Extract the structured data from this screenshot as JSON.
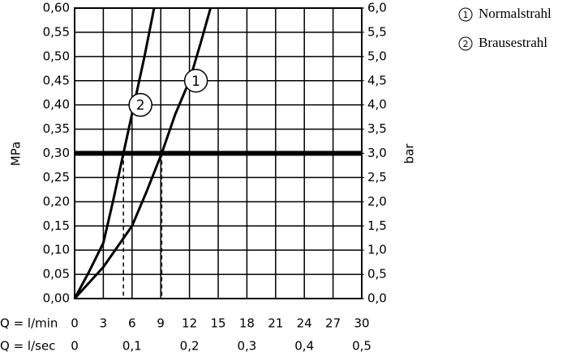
{
  "chart_data": {
    "type": "line",
    "xlabel": "Q = l/min",
    "ylabel": "MPa",
    "y2label": "bar",
    "x2label": "Q = l/sec",
    "xlim": [
      0,
      30
    ],
    "xticks": [
      0,
      3,
      6,
      9,
      12,
      15,
      18,
      21,
      24,
      27,
      30
    ],
    "x2lim": [
      0,
      0.5
    ],
    "x2ticks": [
      0,
      {
        "value": 0.1,
        "label": "0,1"
      },
      {
        "value": 0.2,
        "label": "0,2"
      },
      {
        "value": 0.3,
        "label": "0,3"
      },
      {
        "value": 0.4,
        "label": "0,4"
      },
      {
        "value": 0.5,
        "label": "0,5"
      }
    ],
    "ylim": [
      0,
      0.6
    ],
    "yticks": [
      {
        "value": 0,
        "label": "0,00"
      },
      {
        "value": 0.05,
        "label": "0,05"
      },
      {
        "value": 0.1,
        "label": "0,10"
      },
      {
        "value": 0.15,
        "label": "0,15"
      },
      {
        "value": 0.2,
        "label": "0,20"
      },
      {
        "value": 0.25,
        "label": "0,25"
      },
      {
        "value": 0.3,
        "label": "0,30"
      },
      {
        "value": 0.35,
        "label": "0,35"
      },
      {
        "value": 0.4,
        "label": "0,40"
      },
      {
        "value": 0.45,
        "label": "0,45"
      },
      {
        "value": 0.5,
        "label": "0,50"
      },
      {
        "value": 0.55,
        "label": "0,55"
      },
      {
        "value": 0.6,
        "label": "0,60"
      }
    ],
    "y2lim": [
      0,
      6
    ],
    "y2ticks": [
      {
        "value": 0,
        "label": "0,0"
      },
      {
        "value": 0.5,
        "label": "0,5"
      },
      {
        "value": 1,
        "label": "1,0"
      },
      {
        "value": 1.5,
        "label": "1,5"
      },
      {
        "value": 2,
        "label": "2,0"
      },
      {
        "value": 2.5,
        "label": "2,5"
      },
      {
        "value": 3,
        "label": "3,0"
      },
      {
        "value": 3.5,
        "label": "3,5"
      },
      {
        "value": 4,
        "label": "4,0"
      },
      {
        "value": 4.5,
        "label": "4,5"
      },
      {
        "value": 5,
        "label": "5,0"
      },
      {
        "value": 5.5,
        "label": "5,5"
      },
      {
        "value": 6,
        "label": "6,0"
      }
    ],
    "grid": true,
    "reference_line": 0.3,
    "drop_lines": [
      5.1,
      9.1
    ],
    "series": [
      {
        "name": "Normalstrahl",
        "label": "1",
        "color": "#000000",
        "x": [
          0,
          3,
          6,
          7.5,
          9.1,
          10.5,
          12,
          13.2,
          14.2
        ],
        "values": [
          0,
          0.065,
          0.15,
          0.22,
          0.3,
          0.38,
          0.45,
          0.53,
          0.6
        ]
      },
      {
        "name": "Brausestrahl",
        "label": "2",
        "color": "#000000",
        "x": [
          0,
          1.5,
          3,
          4,
          5.1,
          6.2,
          7.3,
          8.3
        ],
        "values": [
          0,
          0.055,
          0.115,
          0.2,
          0.3,
          0.4,
          0.5,
          0.6
        ]
      }
    ]
  }
}
